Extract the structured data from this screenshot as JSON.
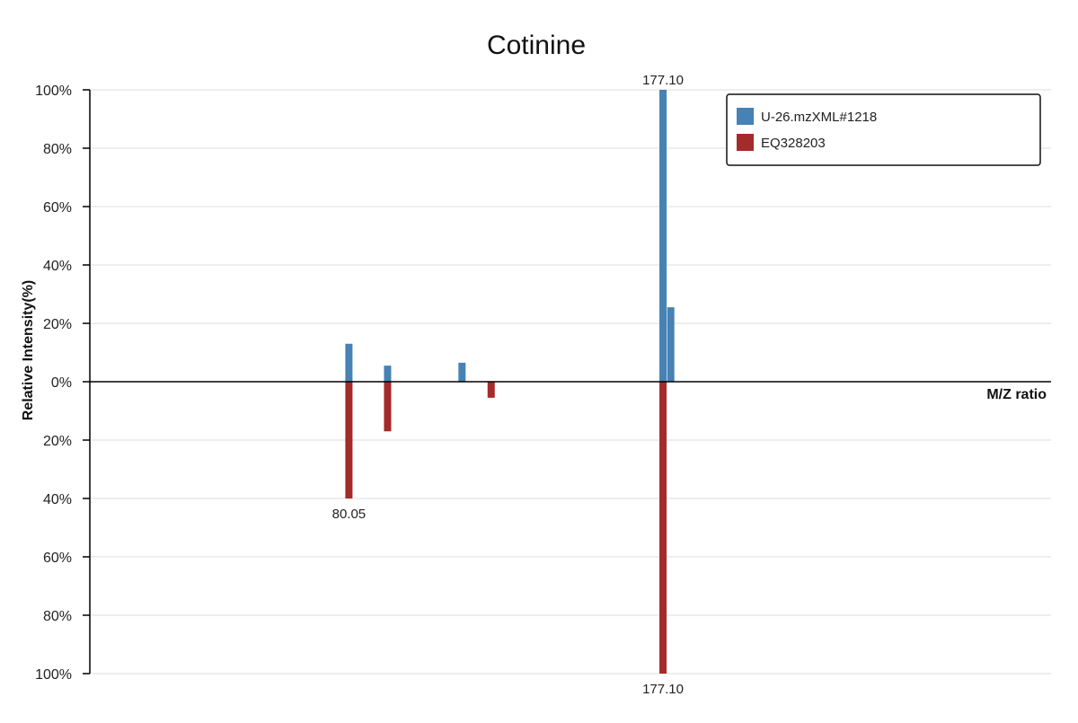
{
  "chart_data": {
    "type": "bar",
    "title": "Cotinine",
    "xlabel": "M/Z ratio",
    "ylabel": "Relative Intensity(%)",
    "ylim": [
      -100,
      100
    ],
    "y_tick_values": [
      100,
      80,
      60,
      40,
      20,
      0,
      -20,
      -40,
      -60,
      -80,
      -100
    ],
    "y_tick_labels": [
      "100%",
      "80%",
      "60%",
      "40%",
      "20%",
      "0%",
      "20%",
      "40%",
      "60%",
      "80%",
      "100%"
    ],
    "x_range": [
      0,
      297
    ],
    "grid": true,
    "legend_position": "top-right",
    "series": [
      {
        "name": "U-26.mzXML#1218",
        "color": "#4682b4",
        "direction": "up",
        "peaks": [
          {
            "mz": 80.05,
            "intensity": 13
          },
          {
            "mz": 92.0,
            "intensity": 5.5
          },
          {
            "mz": 115.0,
            "intensity": 6.5
          },
          {
            "mz": 177.1,
            "intensity": 100
          },
          {
            "mz": 179.5,
            "intensity": 25.5
          }
        ]
      },
      {
        "name": "EQ328203",
        "color": "#a52a2a",
        "direction": "down",
        "peaks": [
          {
            "mz": 80.05,
            "intensity": 40
          },
          {
            "mz": 92.0,
            "intensity": 17
          },
          {
            "mz": 124.0,
            "intensity": 5.5
          },
          {
            "mz": 177.1,
            "intensity": 100
          }
        ]
      }
    ],
    "annotations": [
      {
        "text": "177.10",
        "mz": 177.1,
        "series": 0
      },
      {
        "text": "80.05",
        "mz": 80.05,
        "series": 1
      },
      {
        "text": "177.10",
        "mz": 177.1,
        "series": 1
      }
    ]
  }
}
